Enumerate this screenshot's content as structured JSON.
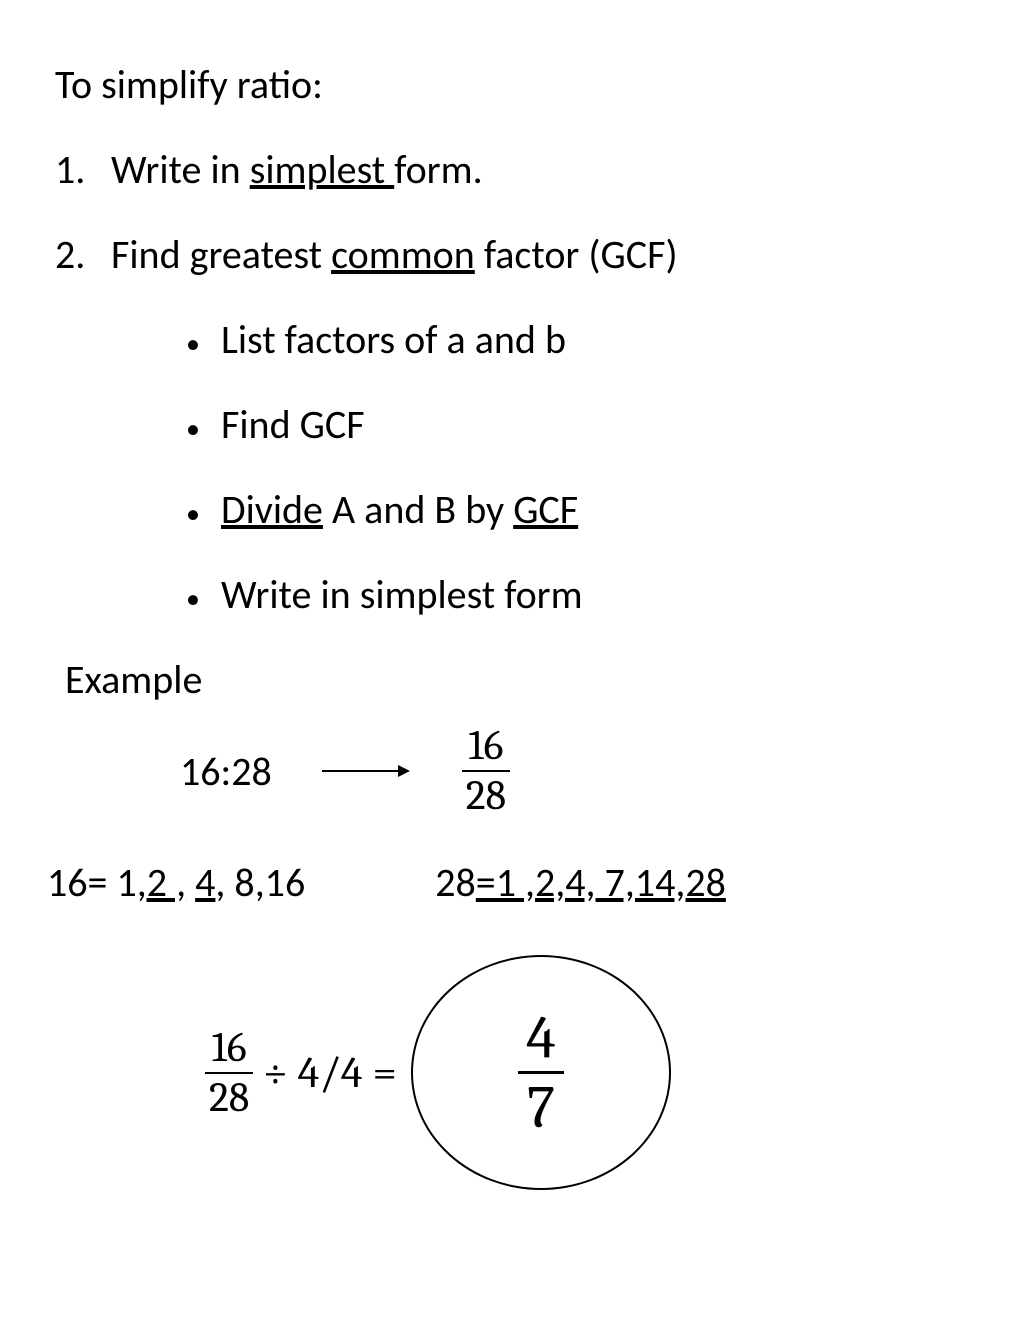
{
  "title": "To simplify ratio:",
  "list": {
    "n1": "1.",
    "n2": "2.",
    "item1_pre": "Write in ",
    "item1_u": "simplest ",
    "item1_post": "form.",
    "item2_pre": "Find greatest ",
    "item2_u": "common",
    "item2_post": " factor (GCF)"
  },
  "sublist": {
    "b1": "List factors of a and b",
    "b2": "Find GCF",
    "b3_u1": "Divide",
    "b3_mid": " A and B by ",
    "b3_u2": "GCF",
    "b4": "Write in simplest form"
  },
  "example": {
    "label": "Example",
    "ratio": "16:28",
    "frac1_num": "16",
    "frac1_den": "28",
    "factors16_pre": "16= 1",
    "factors16_u1": ",2 ,",
    "factors16_mid": " ",
    "factors16_u2": "4",
    "factors16_post": ", 8,16",
    "factors28_pre": "28",
    "factors28_u": "=1 ,2,4, 7,14,28",
    "final_frac_num": "16",
    "final_frac_den": "28",
    "divide_sym": "÷",
    "divide_by": "4/4",
    "equals": "=",
    "answer_num": "4",
    "answer_den": "7"
  },
  "style": {
    "text_color": "#000000",
    "background": "#ffffff",
    "body_fontsize": 40,
    "math_font": "Cambria Math",
    "circle_border_width": 2
  }
}
